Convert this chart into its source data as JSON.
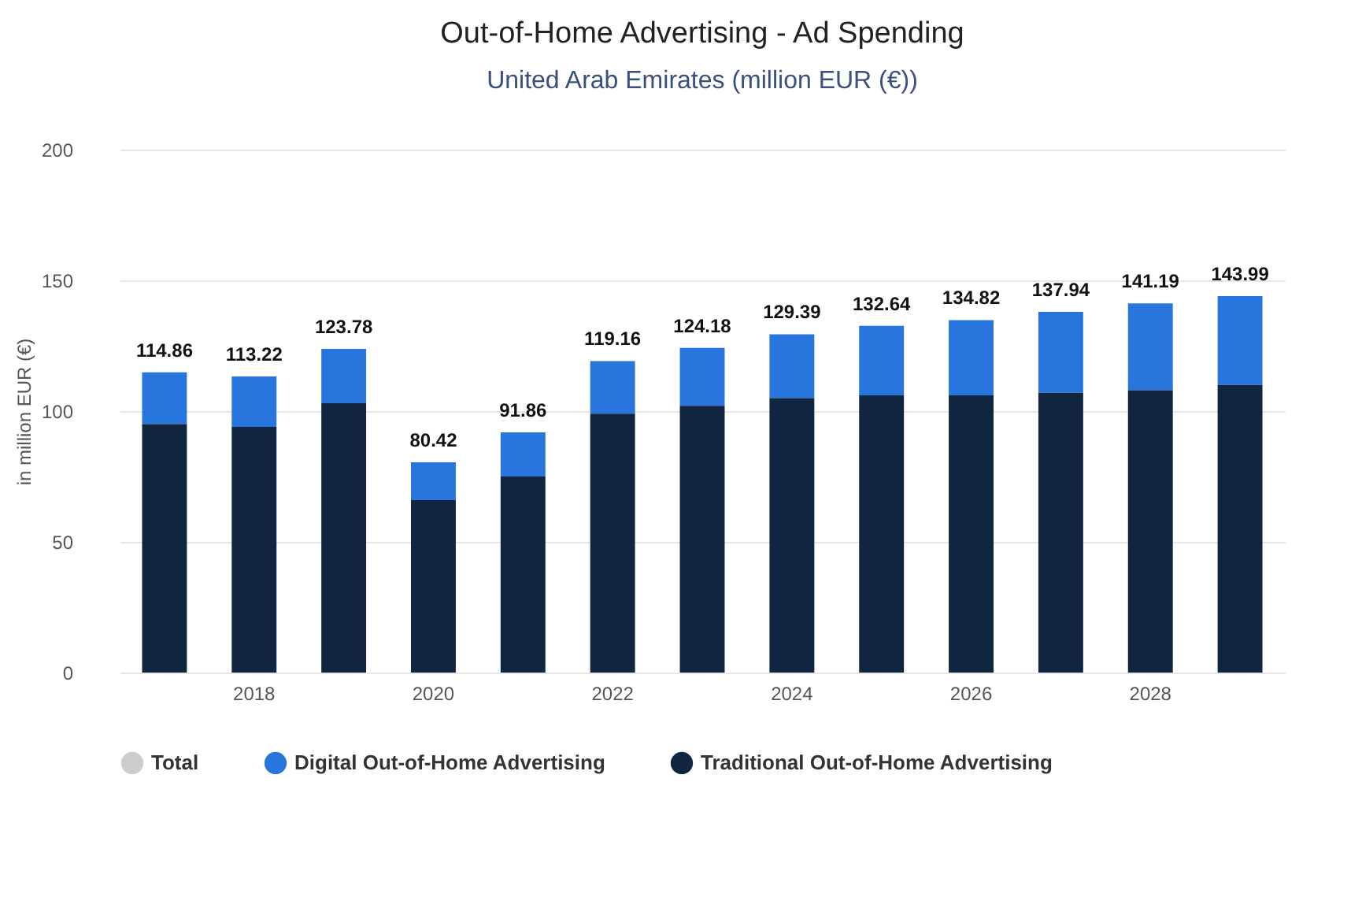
{
  "chart_data": {
    "type": "bar",
    "title": "Out-of-Home Advertising - Ad Spending",
    "subtitle": "United Arab Emirates (million EUR (€))",
    "ylabel": "in million EUR (€)",
    "categories": [
      null,
      "2018",
      null,
      "2020",
      null,
      "2022",
      null,
      "2024",
      null,
      "2026",
      null,
      "2028",
      null
    ],
    "series": [
      {
        "name": "Total",
        "color": "#cccccc",
        "values": [
          null,
          null,
          null,
          null,
          null,
          null,
          null,
          null,
          null,
          null,
          null,
          null,
          null
        ]
      },
      {
        "name": "Digital Out-of-Home Advertising",
        "color": "#2876dd",
        "values": [
          19.86,
          19.22,
          20.78,
          14.42,
          16.86,
          20.16,
          22.18,
          24.39,
          26.64,
          28.82,
          30.94,
          33.19,
          33.99
        ]
      },
      {
        "name": "Traditional Out-of-Home Advertising",
        "color": "#0f2540",
        "values": [
          95,
          94,
          103,
          66,
          75,
          99,
          102,
          105,
          106,
          106,
          107,
          108,
          110
        ]
      }
    ],
    "stacked": true,
    "totals": [
      "114.86",
      "113.22",
      "123.78",
      "80.42",
      "91.86",
      "119.16",
      "124.18",
      "129.39",
      "132.64",
      "134.82",
      "137.94",
      "141.19",
      "143.99"
    ],
    "ylim": [
      0,
      200
    ],
    "yticks": [
      0,
      50,
      100,
      150,
      200
    ],
    "grid": "y",
    "legend": "bottom"
  }
}
